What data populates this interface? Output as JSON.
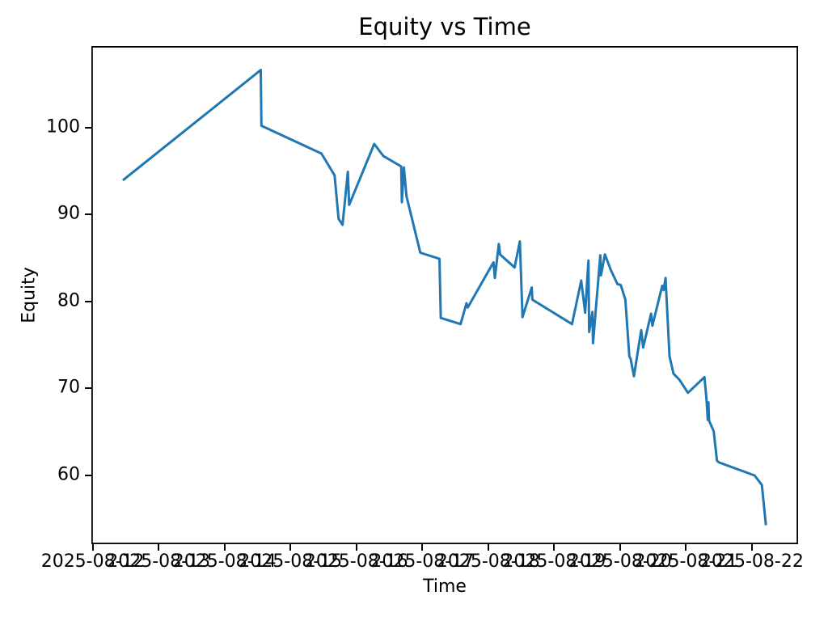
{
  "chart": {
    "title": "Equity vs Time",
    "xlabel": "Time",
    "ylabel": "Equity"
  },
  "chart_data": {
    "type": "line",
    "title": "Equity vs Time",
    "xlabel": "Time",
    "ylabel": "Equity",
    "background_color": "#ffffff",
    "line_color": "#1f77b4",
    "spine_color": "#000000",
    "grid": false,
    "legend": "none",
    "x_unit": "days since 2025-08-12 00:00",
    "xlim": [
      -0.02,
      10.7
    ],
    "ylim": [
      52.1,
      109.35
    ],
    "x_ticks": [
      {
        "t": 0,
        "label": "2025-08-12"
      },
      {
        "t": 1,
        "label": "2025-08-13"
      },
      {
        "t": 2,
        "label": "2025-08-14"
      },
      {
        "t": 3,
        "label": "2025-08-15"
      },
      {
        "t": 4,
        "label": "2025-08-16"
      },
      {
        "t": 5,
        "label": "2025-08-17"
      },
      {
        "t": 6,
        "label": "2025-08-18"
      },
      {
        "t": 7,
        "label": "2025-08-19"
      },
      {
        "t": 8,
        "label": "2025-08-20"
      },
      {
        "t": 9,
        "label": "2025-08-21"
      },
      {
        "t": 10,
        "label": "2025-08-22"
      }
    ],
    "y_ticks": [
      {
        "v": 60,
        "label": "60"
      },
      {
        "v": 70,
        "label": "70"
      },
      {
        "v": 80,
        "label": "80"
      },
      {
        "v": 90,
        "label": "90"
      },
      {
        "v": 100,
        "label": "100"
      }
    ],
    "series": [
      {
        "name": "Equity",
        "points": [
          [
            0.47,
            94.0
          ],
          [
            2.55,
            106.6
          ],
          [
            2.56,
            100.2
          ],
          [
            3.47,
            97.0
          ],
          [
            3.67,
            94.5
          ],
          [
            3.73,
            89.5
          ],
          [
            3.79,
            88.8
          ],
          [
            3.87,
            94.9
          ],
          [
            3.89,
            91.1
          ],
          [
            4.27,
            98.1
          ],
          [
            4.41,
            96.7
          ],
          [
            4.64,
            95.7
          ],
          [
            4.68,
            95.5
          ],
          [
            4.69,
            91.4
          ],
          [
            4.72,
            95.4
          ],
          [
            4.76,
            92.1
          ],
          [
            4.97,
            85.6
          ],
          [
            5.26,
            84.9
          ],
          [
            5.28,
            78.1
          ],
          [
            5.58,
            77.4
          ],
          [
            5.67,
            79.8
          ],
          [
            5.69,
            79.3
          ],
          [
            6.08,
            84.5
          ],
          [
            6.1,
            82.7
          ],
          [
            6.16,
            86.6
          ],
          [
            6.18,
            85.4
          ],
          [
            6.4,
            83.9
          ],
          [
            6.48,
            86.9
          ],
          [
            6.52,
            78.2
          ],
          [
            6.66,
            81.6
          ],
          [
            6.67,
            80.2
          ],
          [
            7.27,
            77.4
          ],
          [
            7.41,
            82.4
          ],
          [
            7.47,
            78.7
          ],
          [
            7.52,
            84.7
          ],
          [
            7.53,
            76.5
          ],
          [
            7.58,
            78.8
          ],
          [
            7.59,
            75.2
          ],
          [
            7.7,
            85.3
          ],
          [
            7.71,
            83.0
          ],
          [
            7.77,
            85.4
          ],
          [
            7.86,
            83.6
          ],
          [
            7.96,
            82.0
          ],
          [
            8.01,
            81.9
          ],
          [
            8.08,
            80.2
          ],
          [
            8.14,
            73.7
          ],
          [
            8.16,
            73.4
          ],
          [
            8.21,
            71.4
          ],
          [
            8.32,
            76.7
          ],
          [
            8.35,
            74.7
          ],
          [
            8.47,
            78.6
          ],
          [
            8.49,
            77.2
          ],
          [
            8.64,
            81.8
          ],
          [
            8.66,
            81.3
          ],
          [
            8.69,
            82.7
          ],
          [
            8.75,
            73.7
          ],
          [
            8.81,
            71.7
          ],
          [
            8.9,
            71.0
          ],
          [
            9.03,
            69.5
          ],
          [
            9.28,
            71.3
          ],
          [
            9.31,
            68.8
          ],
          [
            9.33,
            66.4
          ],
          [
            9.34,
            68.4
          ],
          [
            9.35,
            66.3
          ],
          [
            9.42,
            65.1
          ],
          [
            9.47,
            61.7
          ],
          [
            9.5,
            61.5
          ],
          [
            10.04,
            60.0
          ],
          [
            10.15,
            58.9
          ],
          [
            10.21,
            54.4
          ]
        ]
      }
    ]
  }
}
